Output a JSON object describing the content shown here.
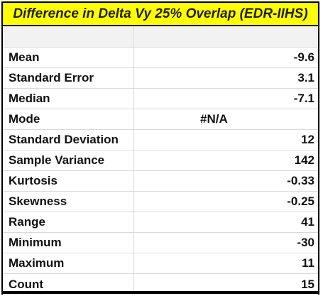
{
  "title": "Difference in Delta Vy 25% Overlap (EDR-IIHS)",
  "colors": {
    "title_background": "#ffff00",
    "grid_line": "#d9d9d9",
    "border": "#000000"
  },
  "rows": [
    {
      "label": "Mean",
      "value": "-9.6"
    },
    {
      "label": "Standard Error",
      "value": "3.1"
    },
    {
      "label": "Median",
      "value": "-7.1"
    },
    {
      "label": "Mode",
      "value": "#N/A"
    },
    {
      "label": "Standard Deviation",
      "value": "12"
    },
    {
      "label": "Sample Variance",
      "value": "142"
    },
    {
      "label": "Kurtosis",
      "value": "-0.33"
    },
    {
      "label": "Skewness",
      "value": "-0.25"
    },
    {
      "label": "Range",
      "value": "41"
    },
    {
      "label": "Minimum",
      "value": "-30"
    },
    {
      "label": "Maximum",
      "value": "11"
    },
    {
      "label": "Count",
      "value": "15"
    }
  ]
}
